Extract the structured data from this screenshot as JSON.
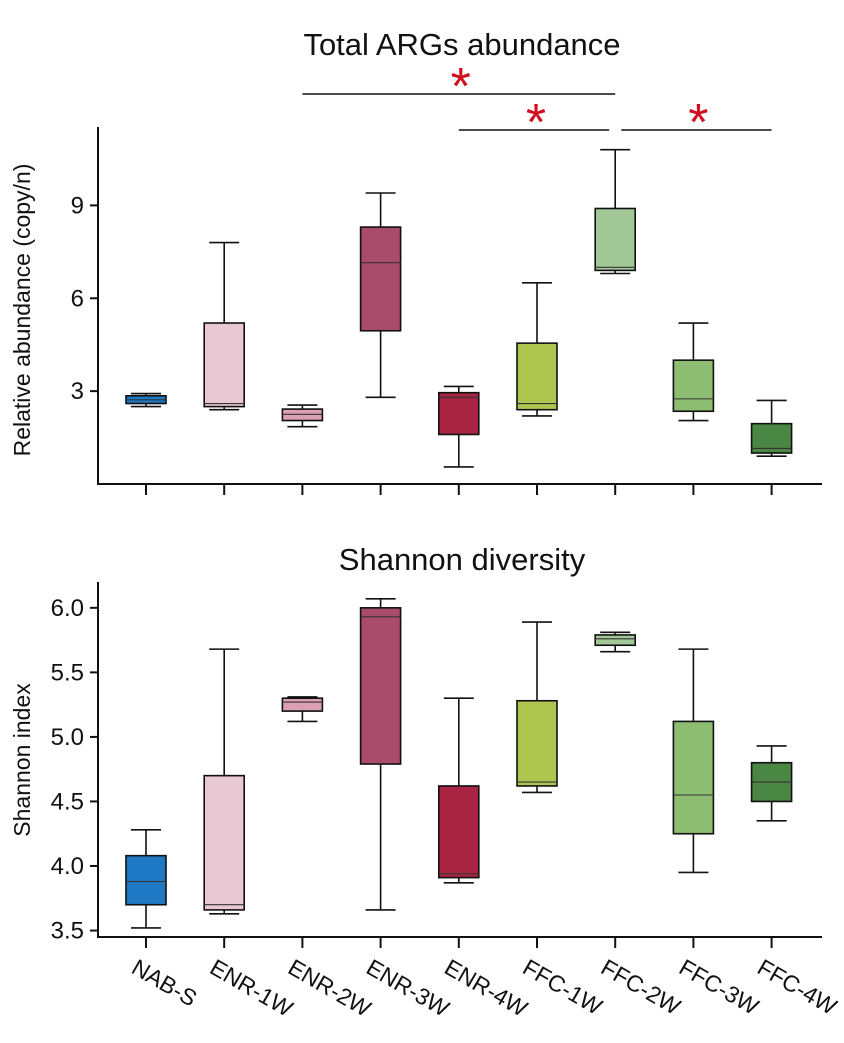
{
  "chart_data": [
    {
      "type": "box",
      "title": "Total ARGs abundance",
      "ylabel": "Relative abundance (copy/n)",
      "ylim": [
        0,
        11.5
      ],
      "yticks": [
        3,
        6,
        9
      ],
      "categories": [
        "NAB-S",
        "ENR-1W",
        "ENR-2W",
        "ENR-3W",
        "ENR-4W",
        "FFC-1W",
        "FFC-2W",
        "FFC-3W",
        "FFC-4W"
      ],
      "colors": [
        "#1f78c4",
        "#e9c8d4",
        "#dca0b4",
        "#a94b6a",
        "#a82442",
        "#aec64f",
        "#a3c898",
        "#8dbd72",
        "#4a8644"
      ],
      "boxes": [
        {
          "min": 2.5,
          "q1": 2.6,
          "median": 2.72,
          "q3": 2.85,
          "max": 2.92
        },
        {
          "min": 2.4,
          "q1": 2.5,
          "median": 2.6,
          "q3": 5.2,
          "max": 7.8
        },
        {
          "min": 1.85,
          "q1": 2.05,
          "median": 2.25,
          "q3": 2.42,
          "max": 2.55
        },
        {
          "min": 2.8,
          "q1": 4.95,
          "median": 7.15,
          "q3": 8.3,
          "max": 9.4
        },
        {
          "min": 0.55,
          "q1": 1.6,
          "median": 2.8,
          "q3": 2.95,
          "max": 3.15
        },
        {
          "min": 2.2,
          "q1": 2.4,
          "median": 2.6,
          "q3": 4.55,
          "max": 6.5
        },
        {
          "min": 6.8,
          "q1": 6.9,
          "median": 7.0,
          "q3": 8.9,
          "max": 10.8
        },
        {
          "min": 2.05,
          "q1": 2.35,
          "median": 2.75,
          "q3": 4.0,
          "max": 5.2
        },
        {
          "min": 0.9,
          "q1": 1.0,
          "median": 1.15,
          "q3": 1.95,
          "max": 2.7
        }
      ],
      "significance": [
        {
          "from": "ENR-2W",
          "to": "FFC-2W",
          "label": "*"
        },
        {
          "from": "ENR-4W",
          "to": "FFC-2W",
          "label": "*"
        },
        {
          "from": "FFC-2W",
          "to": "FFC-4W",
          "label": "*"
        }
      ],
      "grid": false
    },
    {
      "type": "box",
      "title": "Shannon diversity",
      "ylabel": "Shannon index",
      "ylim": [
        3.45,
        6.2
      ],
      "yticks": [
        3.5,
        4.0,
        4.5,
        5.0,
        5.5,
        6.0
      ],
      "ytick_labels": [
        "3.5",
        "4.0",
        "4.5",
        "5.0",
        "5.5",
        "6.0"
      ],
      "categories": [
        "NAB-S",
        "ENR-1W",
        "ENR-2W",
        "ENR-3W",
        "ENR-4W",
        "FFC-1W",
        "FFC-2W",
        "FFC-3W",
        "FFC-4W"
      ],
      "colors": [
        "#1f78c4",
        "#e9c8d4",
        "#dca0b4",
        "#a94b6a",
        "#a82442",
        "#aec64f",
        "#a3c898",
        "#8dbd72",
        "#4a8644"
      ],
      "boxes": [
        {
          "min": 3.52,
          "q1": 3.7,
          "median": 3.88,
          "q3": 4.08,
          "max": 4.28
        },
        {
          "min": 3.63,
          "q1": 3.66,
          "median": 3.7,
          "q3": 4.7,
          "max": 5.68
        },
        {
          "min": 5.12,
          "q1": 5.2,
          "median": 5.27,
          "q3": 5.3,
          "max": 5.31
        },
        {
          "min": 3.66,
          "q1": 4.79,
          "median": 5.93,
          "q3": 6.0,
          "max": 6.07
        },
        {
          "min": 3.87,
          "q1": 3.91,
          "median": 3.94,
          "q3": 4.62,
          "max": 5.3
        },
        {
          "min": 4.57,
          "q1": 4.62,
          "median": 4.65,
          "q3": 5.28,
          "max": 5.89
        },
        {
          "min": 5.66,
          "q1": 5.71,
          "median": 5.76,
          "q3": 5.79,
          "max": 5.81
        },
        {
          "min": 3.95,
          "q1": 4.25,
          "median": 4.55,
          "q3": 5.12,
          "max": 5.68
        },
        {
          "min": 4.35,
          "q1": 4.5,
          "median": 4.65,
          "q3": 4.8,
          "max": 4.93
        }
      ],
      "grid": false
    }
  ]
}
